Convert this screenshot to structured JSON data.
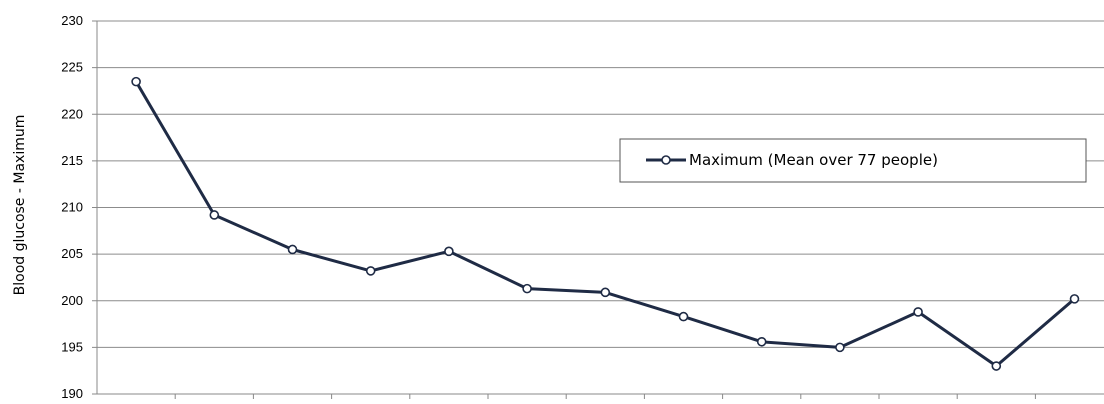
{
  "chart_data": {
    "type": "line",
    "title": "",
    "xlabel": "",
    "ylabel": "Blood glucose - Maximum",
    "ylim": [
      190,
      230
    ],
    "yticks": [
      190,
      195,
      200,
      205,
      210,
      215,
      220,
      225,
      230
    ],
    "grid": true,
    "legend_position": "right",
    "series": [
      {
        "name": "Maximum (Mean over 77 people)",
        "color": "#1f2b45",
        "marker": "open-circle",
        "values": [
          223.5,
          209.2,
          205.5,
          203.2,
          205.3,
          201.3,
          200.9,
          198.3,
          195.6,
          195.0,
          198.8,
          193.0,
          200.2
        ]
      }
    ]
  }
}
